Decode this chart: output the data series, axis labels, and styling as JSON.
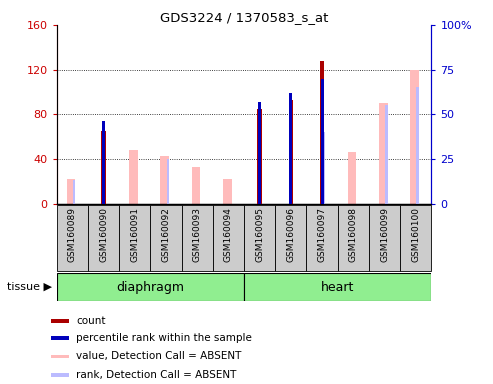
{
  "title": "GDS3224 / 1370583_s_at",
  "samples": [
    "GSM160089",
    "GSM160090",
    "GSM160091",
    "GSM160092",
    "GSM160093",
    "GSM160094",
    "GSM160095",
    "GSM160096",
    "GSM160097",
    "GSM160098",
    "GSM160099",
    "GSM160100"
  ],
  "count_values": [
    0,
    65,
    0,
    0,
    0,
    0,
    85,
    93,
    128,
    0,
    0,
    0
  ],
  "percentile_rank": [
    0,
    46,
    0,
    0,
    0,
    0,
    57,
    62,
    70,
    0,
    0,
    0
  ],
  "absent_value": [
    22,
    0,
    48,
    43,
    33,
    22,
    0,
    0,
    0,
    46,
    90,
    120
  ],
  "absent_rank": [
    13,
    0,
    0,
    25,
    0,
    0,
    0,
    0,
    40,
    0,
    55,
    65
  ],
  "groups": [
    {
      "label": "diaphragm",
      "start": 0,
      "end": 6,
      "color": "#90EE90"
    },
    {
      "label": "heart",
      "start": 6,
      "end": 12,
      "color": "#90EE90"
    }
  ],
  "ylim_left": [
    0,
    160
  ],
  "ylim_right": [
    0,
    100
  ],
  "yticks_left": [
    0,
    40,
    80,
    120,
    160
  ],
  "yticks_right": [
    0,
    25,
    50,
    75,
    100
  ],
  "ytick_labels_left": [
    "0",
    "40",
    "80",
    "120",
    "160"
  ],
  "ytick_labels_right": [
    "0",
    "25",
    "50",
    "75",
    "100%"
  ],
  "left_color": "#cc0000",
  "right_color": "#0000cc",
  "count_color": "#aa0000",
  "percentile_color": "#0000bb",
  "absent_value_color": "#ffbbbb",
  "absent_rank_color": "#bbbbff",
  "bg_color": "#cccccc"
}
